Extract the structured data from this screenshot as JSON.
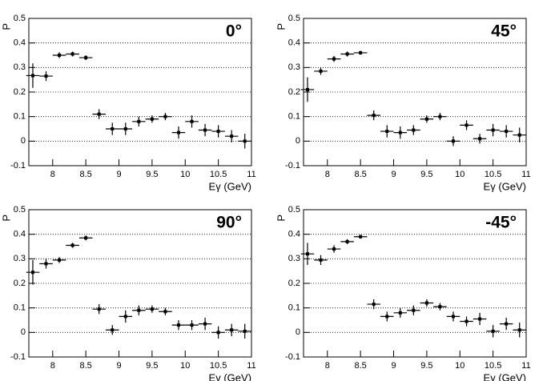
{
  "chart_data": [
    {
      "type": "scatter",
      "title": "0°",
      "x_label": "Eγ (GeV)",
      "y_label": "P",
      "x": [
        7.7,
        7.9,
        8.1,
        8.3,
        8.5,
        8.7,
        8.9,
        9.1,
        9.3,
        9.5,
        9.7,
        9.9,
        10.1,
        10.3,
        10.5,
        10.7,
        10.9
      ],
      "x_error": 0.1,
      "values": [
        0.267,
        0.265,
        0.35,
        0.355,
        0.34,
        0.11,
        0.05,
        0.05,
        0.08,
        0.09,
        0.1,
        0.035,
        0.08,
        0.045,
        0.04,
        0.02,
        0.0
      ],
      "errors": [
        0.05,
        0.02,
        0.012,
        0.01,
        0.01,
        0.02,
        0.025,
        0.025,
        0.02,
        0.015,
        0.015,
        0.025,
        0.025,
        0.025,
        0.025,
        0.025,
        0.03
      ],
      "xlim": [
        7.64,
        11
      ],
      "ylim": [
        -0.1,
        0.5
      ],
      "xticks": [
        8,
        8.5,
        9,
        9.5,
        10,
        10.5,
        11
      ],
      "yticks": [
        -0.1,
        0,
        0.1,
        0.2,
        0.3,
        0.4,
        0.5
      ],
      "grid": true,
      "color": "#000000"
    },
    {
      "type": "scatter",
      "title": "45°",
      "x_label": "Eγ (GeV)",
      "y_label": "P",
      "x": [
        7.7,
        7.9,
        8.1,
        8.3,
        8.5,
        8.7,
        8.9,
        9.1,
        9.3,
        9.5,
        9.7,
        9.9,
        10.1,
        10.3,
        10.5,
        10.7,
        10.9
      ],
      "x_error": 0.1,
      "values": [
        0.21,
        0.285,
        0.335,
        0.355,
        0.36,
        0.105,
        0.04,
        0.035,
        0.045,
        0.09,
        0.1,
        0.0,
        0.065,
        0.01,
        0.045,
        0.04,
        0.025
      ],
      "errors": [
        0.05,
        0.015,
        0.012,
        0.01,
        0.008,
        0.02,
        0.025,
        0.025,
        0.02,
        0.015,
        0.015,
        0.02,
        0.02,
        0.02,
        0.025,
        0.025,
        0.03
      ],
      "xlim": [
        7.64,
        11
      ],
      "ylim": [
        -0.1,
        0.5
      ],
      "xticks": [
        8,
        8.5,
        9,
        9.5,
        10,
        10.5,
        11
      ],
      "yticks": [
        -0.1,
        0,
        0.1,
        0.2,
        0.3,
        0.4,
        0.5
      ],
      "grid": true,
      "color": "#000000"
    },
    {
      "type": "scatter",
      "title": "90°",
      "x_label": "Eγ (GeV)",
      "y_label": "P",
      "x": [
        7.7,
        7.9,
        8.1,
        8.3,
        8.5,
        8.7,
        8.9,
        9.1,
        9.3,
        9.5,
        9.7,
        9.9,
        10.1,
        10.3,
        10.5,
        10.7,
        10.9
      ],
      "x_error": 0.1,
      "values": [
        0.245,
        0.28,
        0.295,
        0.355,
        0.385,
        0.095,
        0.01,
        0.065,
        0.09,
        0.095,
        0.085,
        0.03,
        0.03,
        0.035,
        0.0,
        0.01,
        0.005
      ],
      "errors": [
        0.05,
        0.02,
        0.012,
        0.01,
        0.01,
        0.02,
        0.02,
        0.025,
        0.02,
        0.015,
        0.015,
        0.02,
        0.02,
        0.025,
        0.025,
        0.025,
        0.03
      ],
      "xlim": [
        7.64,
        11
      ],
      "ylim": [
        -0.1,
        0.5
      ],
      "xticks": [
        8,
        8.5,
        9,
        9.5,
        10,
        10.5,
        11
      ],
      "yticks": [
        -0.1,
        0,
        0.1,
        0.2,
        0.3,
        0.4,
        0.5
      ],
      "grid": true,
      "color": "#000000"
    },
    {
      "type": "scatter",
      "title": "-45°",
      "x_label": "Eγ (GeV)",
      "y_label": "P",
      "x": [
        7.7,
        7.9,
        8.1,
        8.3,
        8.5,
        8.7,
        8.9,
        9.1,
        9.3,
        9.5,
        9.7,
        9.9,
        10.1,
        10.3,
        10.5,
        10.7,
        10.9
      ],
      "x_error": 0.1,
      "values": [
        0.32,
        0.295,
        0.34,
        0.37,
        0.39,
        0.115,
        0.065,
        0.08,
        0.09,
        0.12,
        0.105,
        0.065,
        0.045,
        0.055,
        0.005,
        0.035,
        0.01
      ],
      "errors": [
        0.045,
        0.02,
        0.015,
        0.01,
        0.008,
        0.02,
        0.02,
        0.02,
        0.02,
        0.015,
        0.015,
        0.02,
        0.02,
        0.025,
        0.025,
        0.025,
        0.03
      ],
      "xlim": [
        7.64,
        11
      ],
      "ylim": [
        -0.1,
        0.5
      ],
      "xticks": [
        8,
        8.5,
        9,
        9.5,
        10,
        10.5,
        11
      ],
      "yticks": [
        -0.1,
        0,
        0.1,
        0.2,
        0.3,
        0.4,
        0.5
      ],
      "grid": true,
      "color": "#000000"
    }
  ]
}
